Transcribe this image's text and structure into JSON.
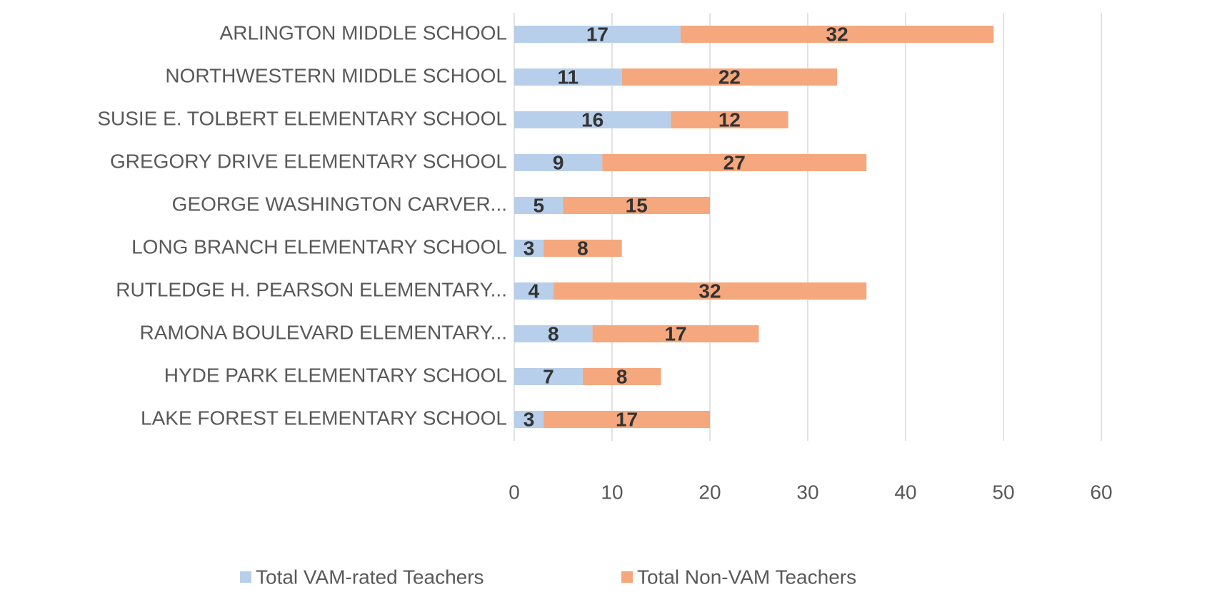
{
  "chart_data": {
    "type": "stacked_barh",
    "categories": [
      "ARLINGTON MIDDLE SCHOOL",
      "NORTHWESTERN MIDDLE SCHOOL",
      "SUSIE E. TOLBERT ELEMENTARY SCHOOL",
      "GREGORY DRIVE ELEMENTARY SCHOOL",
      "GEORGE WASHINGTON CARVER...",
      "LONG BRANCH ELEMENTARY SCHOOL",
      "RUTLEDGE H. PEARSON ELEMENTARY...",
      "RAMONA BOULEVARD ELEMENTARY...",
      "HYDE PARK ELEMENTARY SCHOOL",
      "LAKE FOREST ELEMENTARY SCHOOL"
    ],
    "series": [
      {
        "name": "Total VAM-rated Teachers",
        "color": "#b7cfea",
        "values": [
          17,
          11,
          16,
          9,
          5,
          3,
          4,
          8,
          7,
          3
        ]
      },
      {
        "name": "Total Non-VAM Teachers",
        "color": "#f5a77e",
        "values": [
          32,
          22,
          12,
          27,
          15,
          8,
          32,
          17,
          8,
          17
        ]
      }
    ],
    "xlim": [
      0,
      60
    ],
    "xticks": [
      0,
      10,
      20,
      30,
      40,
      50,
      60
    ],
    "grid": true,
    "legend": "bottom"
  }
}
